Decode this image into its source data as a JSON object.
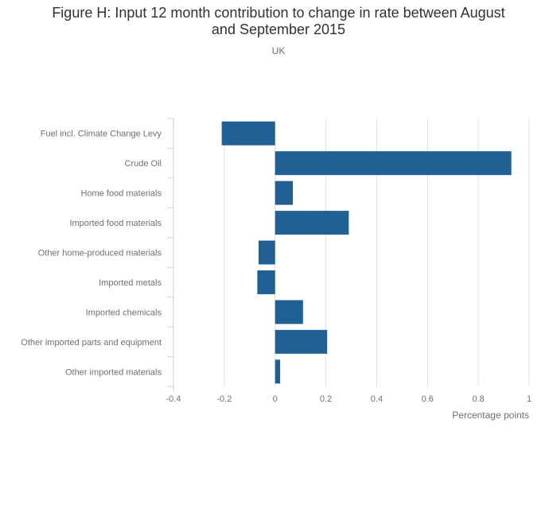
{
  "chart_data": {
    "type": "bar",
    "orientation": "horizontal",
    "title_lines": [
      "Figure H: Input 12 month contribution to change in rate between August",
      "and September 2015"
    ],
    "subtitle": "UK",
    "categories": [
      "Fuel incl. Climate Change Levy",
      "Crude Oil",
      "Home food materials",
      "Imported food materials",
      "Other home-produced materials",
      "Imported metals",
      "Imported chemicals",
      "Other imported parts and equipment",
      "Other imported materials"
    ],
    "values": [
      -0.21,
      0.93,
      0.07,
      0.29,
      -0.065,
      -0.07,
      0.11,
      0.205,
      0.02
    ],
    "xlabel": "Percentage points",
    "ylabel": "",
    "xlim": [
      -0.4,
      1
    ],
    "xticks": [
      -0.4,
      -0.2,
      0,
      0.2,
      0.4,
      0.6,
      0.8,
      1
    ],
    "xtick_labels": [
      "-0.4",
      "-0.2",
      "0",
      "0.2",
      "0.4",
      "0.6",
      "0.8",
      "1"
    ],
    "grid": true,
    "bar_color": "#206095",
    "grid_color": "#e0e0e0",
    "axis_color": "#c9d3dc"
  }
}
